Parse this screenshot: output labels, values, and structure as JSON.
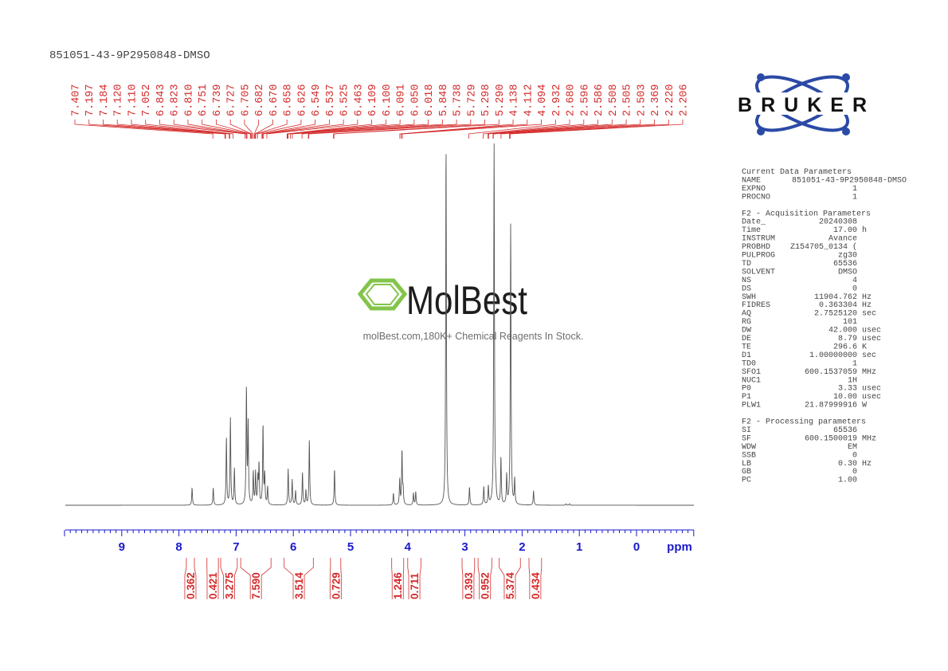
{
  "header": {
    "title": "851051-43-9P2950848-DMSO"
  },
  "logo": {
    "brand": "BRUKER"
  },
  "watermark": {
    "brand": "MolBest",
    "tagline": "molBest.com,180K+ Chemical Reagents In Stock.",
    "color": "#7dc242"
  },
  "colors": {
    "trace": "#555555",
    "peak_labels": "#d42a2a",
    "axis": "#1a1acc",
    "params": "#444444"
  },
  "params": [
    {
      "title": "Current Data Parameters",
      "rows": [
        {
          "key": "NAME",
          "value": "851051-43-9P2950848-DMSO",
          "unit": ""
        },
        {
          "key": "EXPNO",
          "value": "1",
          "unit": ""
        },
        {
          "key": "PROCNO",
          "value": "1",
          "unit": ""
        }
      ]
    },
    {
      "title": "F2 - Acquisition Parameters",
      "rows": [
        {
          "key": "Date_",
          "value": "20240308",
          "unit": ""
        },
        {
          "key": "Time",
          "value": "17.00",
          "unit": "h"
        },
        {
          "key": "INSTRUM",
          "value": "Avance",
          "unit": ""
        },
        {
          "key": "PROBHD",
          "value": "Z154705_0134 (",
          "unit": ""
        },
        {
          "key": "PULPROG",
          "value": "zg30",
          "unit": ""
        },
        {
          "key": "TD",
          "value": "65536",
          "unit": ""
        },
        {
          "key": "SOLVENT",
          "value": "DMSO",
          "unit": ""
        },
        {
          "key": "NS",
          "value": "4",
          "unit": ""
        },
        {
          "key": "DS",
          "value": "0",
          "unit": ""
        },
        {
          "key": "SWH",
          "value": "11904.762",
          "unit": "Hz"
        },
        {
          "key": "FIDRES",
          "value": "0.363304",
          "unit": "Hz"
        },
        {
          "key": "AQ",
          "value": "2.7525120",
          "unit": "sec"
        },
        {
          "key": "RG",
          "value": "101",
          "unit": ""
        },
        {
          "key": "DW",
          "value": "42.000",
          "unit": "usec"
        },
        {
          "key": "DE",
          "value": "8.79",
          "unit": "usec"
        },
        {
          "key": "TE",
          "value": "296.6",
          "unit": "K"
        },
        {
          "key": "D1",
          "value": "1.00000000",
          "unit": "sec"
        },
        {
          "key": "TD0",
          "value": "1",
          "unit": ""
        },
        {
          "key": "SFO1",
          "value": "600.1537059",
          "unit": "MHz"
        },
        {
          "key": "NUC1",
          "value": "1H",
          "unit": ""
        },
        {
          "key": "P0",
          "value": "3.33",
          "unit": "usec"
        },
        {
          "key": "P1",
          "value": "10.00",
          "unit": "usec"
        },
        {
          "key": "PLW1",
          "value": "21.87999916",
          "unit": "W"
        }
      ]
    },
    {
      "title": "F2 - Processing parameters",
      "rows": [
        {
          "key": "SI",
          "value": "65536",
          "unit": ""
        },
        {
          "key": "SF",
          "value": "600.1500019",
          "unit": "MHz"
        },
        {
          "key": "WDW",
          "value": "EM",
          "unit": ""
        },
        {
          "key": "SSB",
          "value": "0",
          "unit": ""
        },
        {
          "key": "LB",
          "value": "0.30",
          "unit": "Hz"
        },
        {
          "key": "GB",
          "value": "0",
          "unit": ""
        },
        {
          "key": "PC",
          "value": "1.00",
          "unit": ""
        }
      ]
    }
  ],
  "chart_data": {
    "type": "line",
    "title": "851051-43-9P2950848-DMSO",
    "xlabel": "ppm",
    "xlim": [
      10,
      -1
    ],
    "x_reversed": true,
    "x_ticks": [
      "9",
      "8",
      "7",
      "6",
      "5",
      "4",
      "3",
      "2",
      "1",
      "0"
    ],
    "x_minor_step": 0.1,
    "grid": false,
    "peak_labels": [
      "7.407",
      "7.197",
      "7.184",
      "7.120",
      "7.110",
      "7.052",
      "6.843",
      "6.823",
      "6.810",
      "6.751",
      "6.739",
      "6.727",
      "6.705",
      "6.682",
      "6.670",
      "6.658",
      "6.626",
      "6.549",
      "6.537",
      "6.525",
      "6.463",
      "6.109",
      "6.100",
      "6.091",
      "6.050",
      "6.018",
      "5.848",
      "5.738",
      "5.729",
      "5.298",
      "5.290",
      "4.138",
      "4.112",
      "4.094",
      "2.932",
      "2.680",
      "2.596",
      "2.586",
      "2.508",
      "2.505",
      "2.503",
      "2.369",
      "2.220",
      "2.206"
    ],
    "integrals": [
      {
        "value": "0.362",
        "range": [
          7.87,
          7.73
        ]
      },
      {
        "value": "0.421",
        "range": [
          7.51,
          7.31
        ]
      },
      {
        "value": "3.275",
        "range": [
          7.27,
          6.98
        ]
      },
      {
        "value": "7.590",
        "range": [
          6.92,
          6.39
        ]
      },
      {
        "value": "3.514",
        "range": [
          6.16,
          5.65
        ]
      },
      {
        "value": "0.729",
        "range": [
          5.35,
          5.17
        ]
      },
      {
        "value": "1.246",
        "range": [
          4.28,
          4.07
        ]
      },
      {
        "value": "0.711",
        "range": [
          4.0,
          3.77
        ]
      },
      {
        "value": "0.393",
        "range": [
          3.05,
          2.83
        ]
      },
      {
        "value": "0.952",
        "range": [
          2.77,
          2.53
        ]
      },
      {
        "value": "5.374",
        "range": [
          2.4,
          2.03
        ]
      },
      {
        "value": "0.434",
        "range": [
          1.88,
          1.66
        ]
      }
    ],
    "trace_peaks_relative_intensity": [
      [
        7.77,
        0.048
      ],
      [
        7.4,
        0.048
      ],
      [
        7.17,
        0.185
      ],
      [
        7.1,
        0.24
      ],
      [
        7.03,
        0.1
      ],
      [
        6.82,
        0.32
      ],
      [
        6.79,
        0.22
      ],
      [
        6.7,
        0.09
      ],
      [
        6.66,
        0.09
      ],
      [
        6.62,
        0.07
      ],
      [
        6.6,
        0.11
      ],
      [
        6.53,
        0.22
      ],
      [
        6.5,
        0.08
      ],
      [
        6.45,
        0.05
      ],
      [
        6.09,
        0.1
      ],
      [
        6.02,
        0.07
      ],
      [
        5.96,
        0.04
      ],
      [
        5.84,
        0.09
      ],
      [
        5.78,
        0.04
      ],
      [
        5.72,
        0.18
      ],
      [
        5.28,
        0.1
      ],
      [
        4.25,
        0.033
      ],
      [
        4.14,
        0.07
      ],
      [
        4.1,
        0.15
      ],
      [
        4.08,
        0.04
      ],
      [
        3.9,
        0.033
      ],
      [
        3.86,
        0.037
      ],
      [
        3.33,
        1.0
      ],
      [
        2.92,
        0.05
      ],
      [
        2.67,
        0.05
      ],
      [
        2.59,
        0.05
      ],
      [
        2.49,
        1.0
      ],
      [
        2.46,
        0.03
      ],
      [
        2.37,
        0.13
      ],
      [
        2.27,
        0.08
      ],
      [
        2.2,
        0.78
      ],
      [
        2.13,
        0.07
      ],
      [
        1.8,
        0.04
      ],
      [
        1.23,
        0.004
      ],
      [
        1.17,
        0.004
      ]
    ]
  }
}
